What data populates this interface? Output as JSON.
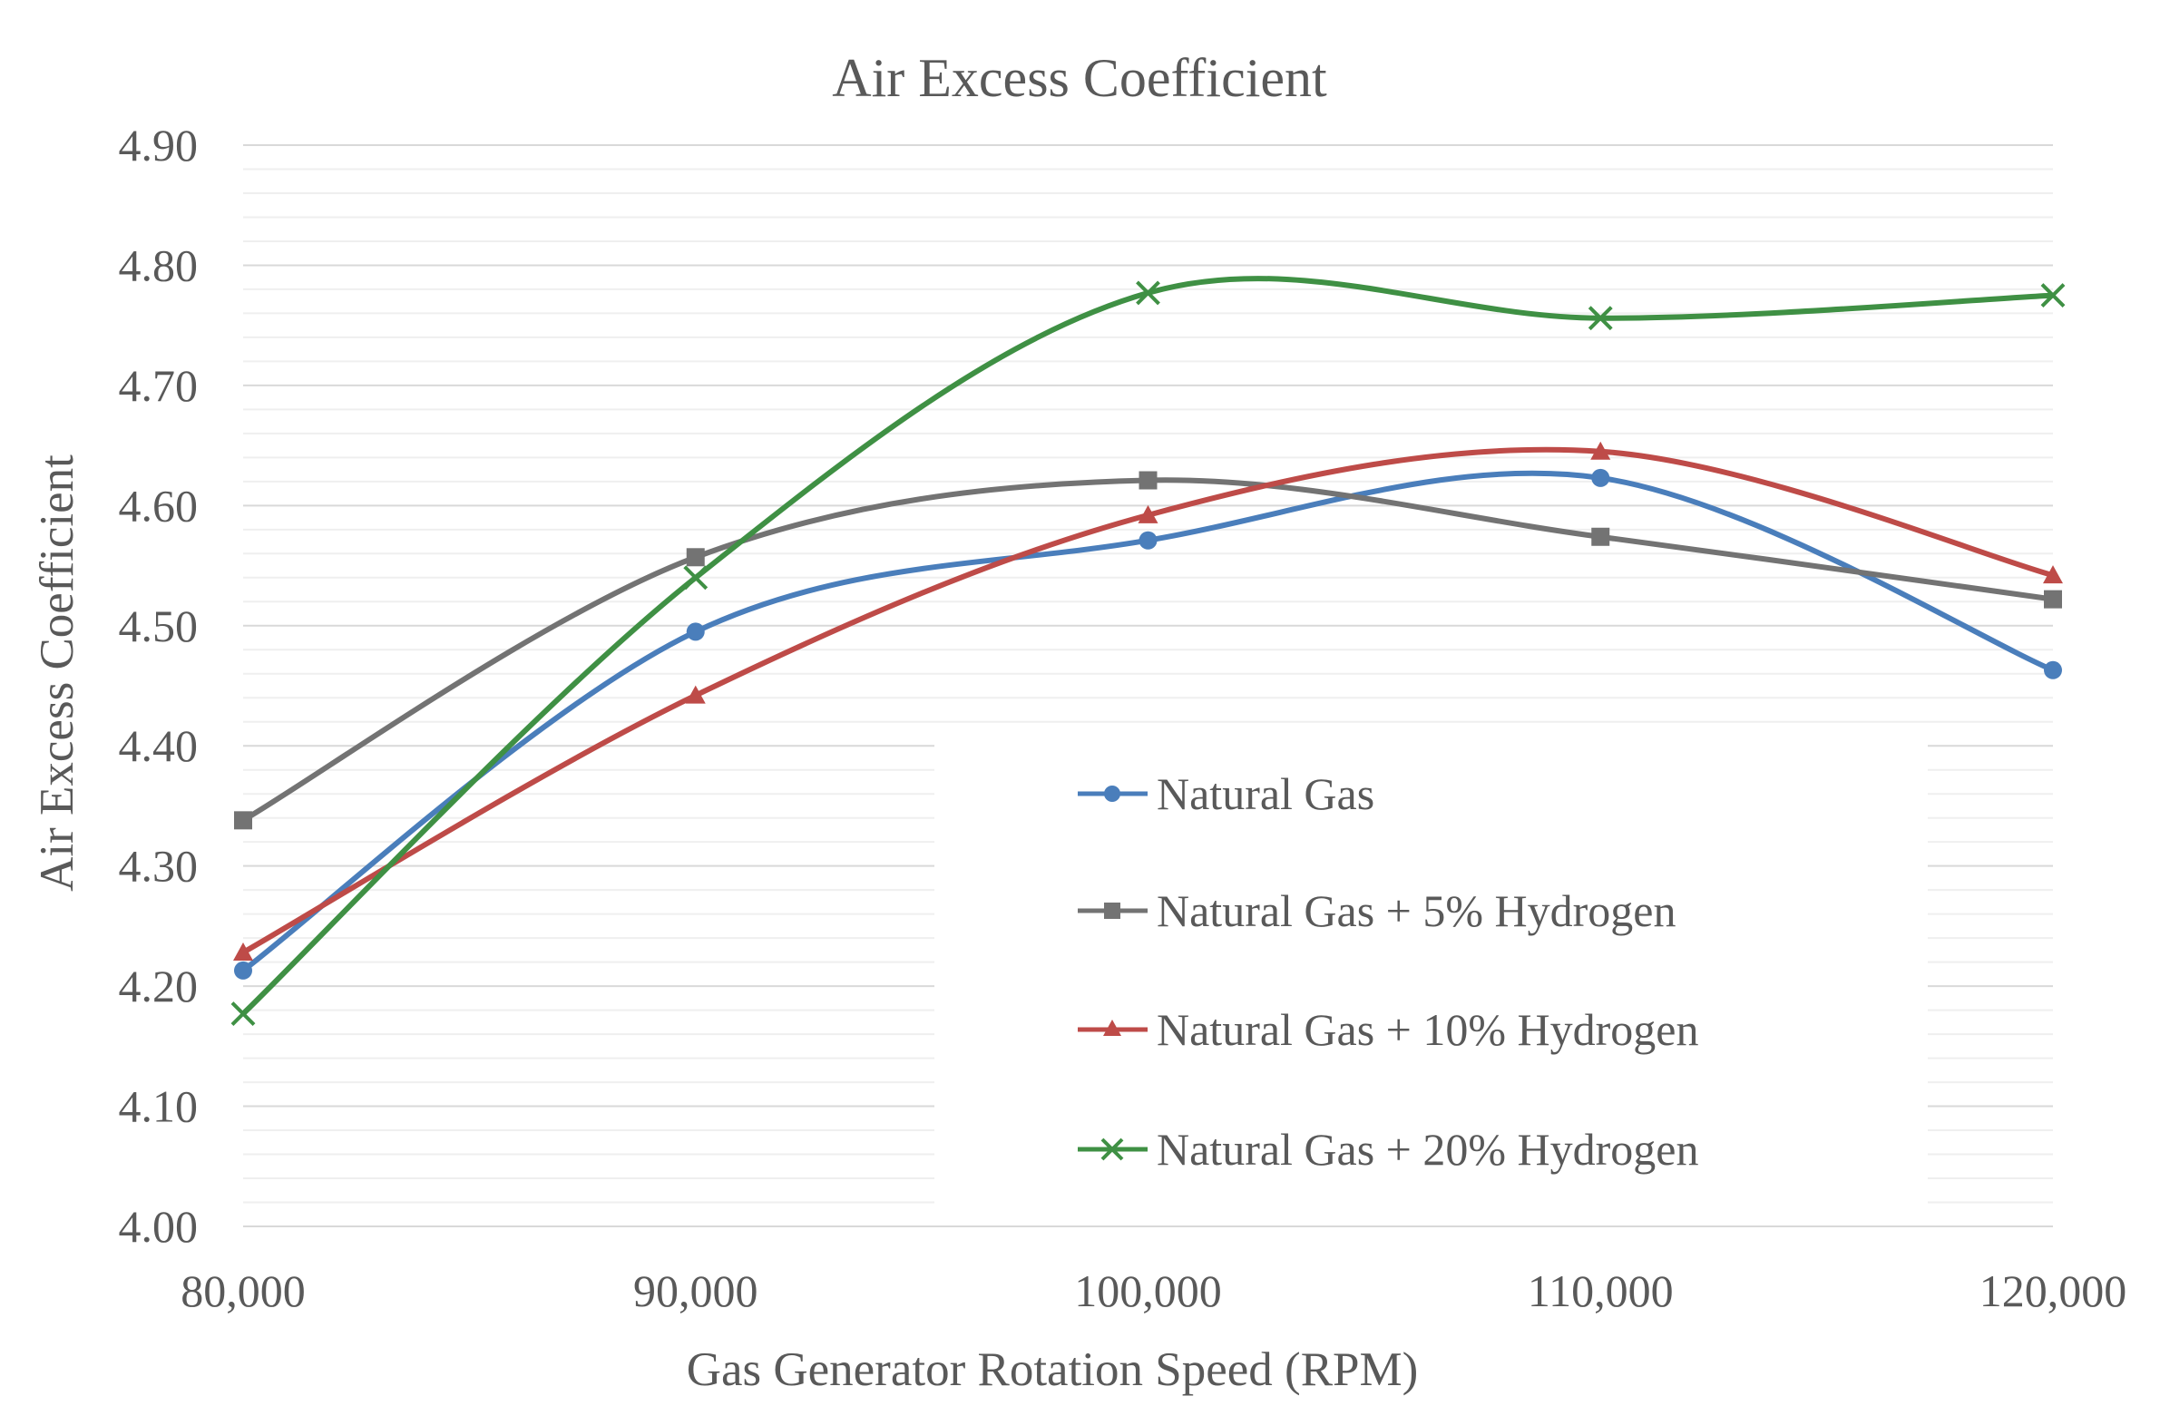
{
  "chart_data": {
    "type": "line",
    "title": "Air Excess Coefficient",
    "xlabel": "Gas Generator Rotation Speed (RPM)",
    "ylabel": "Air Excess Coefficient",
    "x": [
      80000,
      90000,
      100000,
      110000,
      120000
    ],
    "x_tick_labels": [
      "80,000",
      "90,000",
      "100,000",
      "110,000",
      "120,000"
    ],
    "xlim": [
      80000,
      120000
    ],
    "ylim": [
      4.0,
      4.9
    ],
    "y_ticks": [
      4.0,
      4.1,
      4.2,
      4.3,
      4.4,
      4.5,
      4.6,
      4.7,
      4.8,
      4.9
    ],
    "y_tick_labels": [
      "4.00",
      "4.10",
      "4.20",
      "4.30",
      "4.40",
      "4.50",
      "4.60",
      "4.70",
      "4.80",
      "4.90"
    ],
    "grid": true,
    "minor_grid": true,
    "smooth": true,
    "legend_position": "center-right",
    "series": [
      {
        "name": "Natural Gas",
        "color": "#4a7ebb",
        "marker": "circle",
        "values": [
          4.213,
          4.495,
          4.571,
          4.623,
          4.463
        ]
      },
      {
        "name": "Natural Gas + 5% Hydrogen",
        "color": "#737373",
        "marker": "square",
        "values": [
          4.338,
          4.557,
          4.621,
          4.574,
          4.522
        ]
      },
      {
        "name": "Natural Gas + 10% Hydrogen",
        "color": "#be4b48",
        "marker": "triangle",
        "values": [
          4.228,
          4.442,
          4.592,
          4.645,
          4.542
        ]
      },
      {
        "name": "Natural Gas + 20% Hydrogen",
        "color": "#3f9044",
        "marker": "x",
        "values": [
          4.177,
          4.54,
          4.777,
          4.756,
          4.775
        ]
      }
    ]
  }
}
